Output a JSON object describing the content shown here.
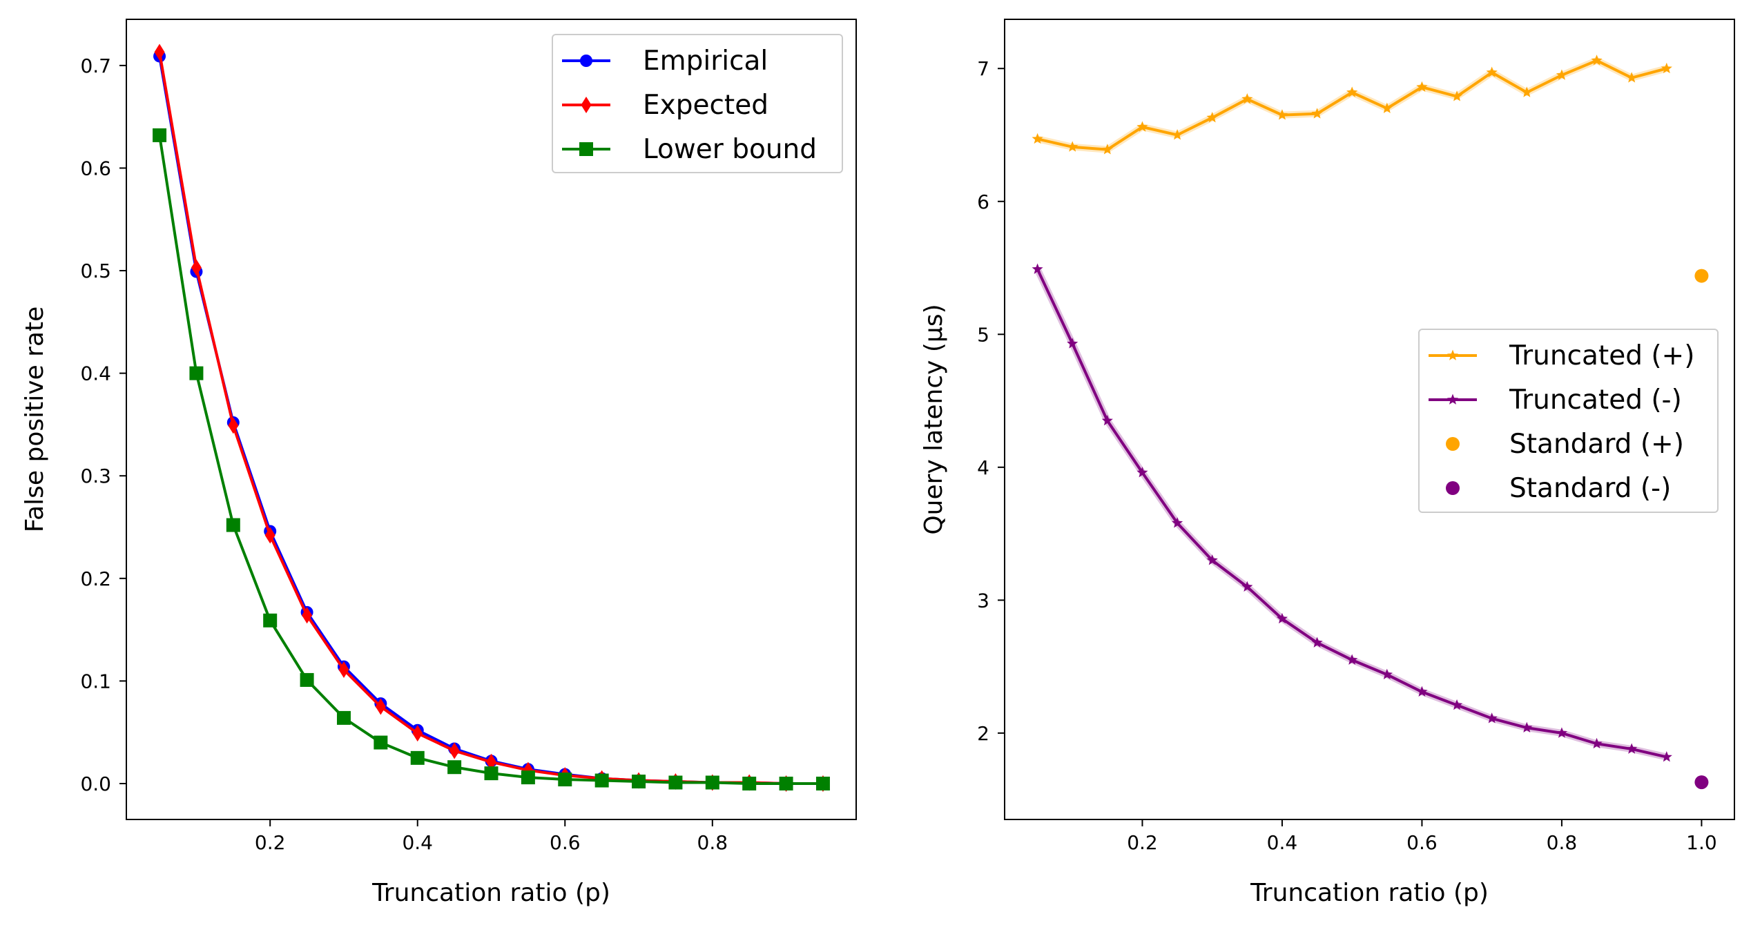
{
  "chart_data": [
    {
      "type": "line",
      "xlabel": "Truncation ratio (p)",
      "ylabel": "False positive rate",
      "xlim": [
        0.005,
        0.995
      ],
      "ylim": [
        -0.035,
        0.745
      ],
      "xticks": [
        0.2,
        0.4,
        0.6,
        0.8
      ],
      "xtick_labels": [
        "0.2",
        "0.4",
        "0.6",
        "0.8"
      ],
      "yticks": [
        0.0,
        0.1,
        0.2,
        0.3,
        0.4,
        0.5,
        0.6,
        0.7
      ],
      "ytick_labels": [
        "0.0",
        "0.1",
        "0.2",
        "0.3",
        "0.4",
        "0.5",
        "0.6",
        "0.7"
      ],
      "grid": false,
      "legend_position": "top-right",
      "x": [
        0.05,
        0.1,
        0.15,
        0.2,
        0.25,
        0.3,
        0.35,
        0.4,
        0.45,
        0.5,
        0.55,
        0.6,
        0.65,
        0.7,
        0.75,
        0.8,
        0.85,
        0.9,
        0.95
      ],
      "series": [
        {
          "name": "Empirical",
          "color": "#0000ff",
          "marker": "circle",
          "values": [
            0.709,
            0.499,
            0.352,
            0.246,
            0.167,
            0.114,
            0.078,
            0.052,
            0.034,
            0.022,
            0.014,
            0.009,
            0.005,
            0.003,
            0.002,
            0.001,
            0.001,
            0.0,
            0.0
          ]
        },
        {
          "name": "Expected",
          "color": "#ff0000",
          "marker": "diamond",
          "values": [
            0.713,
            0.503,
            0.349,
            0.242,
            0.164,
            0.111,
            0.075,
            0.049,
            0.032,
            0.021,
            0.013,
            0.008,
            0.005,
            0.003,
            0.002,
            0.001,
            0.001,
            0.0,
            0.0
          ]
        },
        {
          "name": "Lower bound",
          "color": "#008000",
          "marker": "square",
          "values": [
            0.632,
            0.4,
            0.252,
            0.159,
            0.101,
            0.064,
            0.04,
            0.025,
            0.016,
            0.01,
            0.006,
            0.004,
            0.003,
            0.002,
            0.001,
            0.001,
            0.0,
            0.0,
            0.0
          ]
        }
      ]
    },
    {
      "type": "line",
      "xlabel": "Truncation ratio (p)",
      "ylabel": "Query latency (µs)",
      "xlim": [
        0.003,
        1.047
      ],
      "ylim": [
        1.35,
        7.37
      ],
      "xticks": [
        0.2,
        0.4,
        0.6,
        0.8,
        1.0
      ],
      "xtick_labels": [
        "0.2",
        "0.4",
        "0.6",
        "0.8",
        "1.0"
      ],
      "yticks": [
        2,
        3,
        4,
        5,
        6,
        7
      ],
      "ytick_labels": [
        "2",
        "3",
        "4",
        "5",
        "6",
        "7"
      ],
      "grid": false,
      "legend_position": "center-right",
      "x": [
        0.05,
        0.1,
        0.15,
        0.2,
        0.25,
        0.3,
        0.35,
        0.4,
        0.45,
        0.5,
        0.55,
        0.6,
        0.65,
        0.7,
        0.75,
        0.8,
        0.85,
        0.9,
        0.95
      ],
      "series": [
        {
          "name": "Truncated (+)",
          "color": "#ffa500",
          "marker": "star",
          "values": [
            6.47,
            6.41,
            6.39,
            6.56,
            6.5,
            6.63,
            6.77,
            6.65,
            6.66,
            6.82,
            6.7,
            6.86,
            6.79,
            6.97,
            6.82,
            6.95,
            7.06,
            6.93,
            7.0
          ]
        },
        {
          "name": "Truncated (-)",
          "color": "#800080",
          "marker": "star",
          "values": [
            5.49,
            4.93,
            4.35,
            3.96,
            3.58,
            3.3,
            3.1,
            2.86,
            2.68,
            2.55,
            2.44,
            2.31,
            2.21,
            2.11,
            2.04,
            2.0,
            1.92,
            1.88,
            1.82
          ]
        }
      ],
      "points": [
        {
          "name": "Standard (+)",
          "color": "#ffa500",
          "x": 1.0,
          "y": 5.44
        },
        {
          "name": "Standard (-)",
          "color": "#800080",
          "x": 1.0,
          "y": 1.63
        }
      ]
    }
  ]
}
